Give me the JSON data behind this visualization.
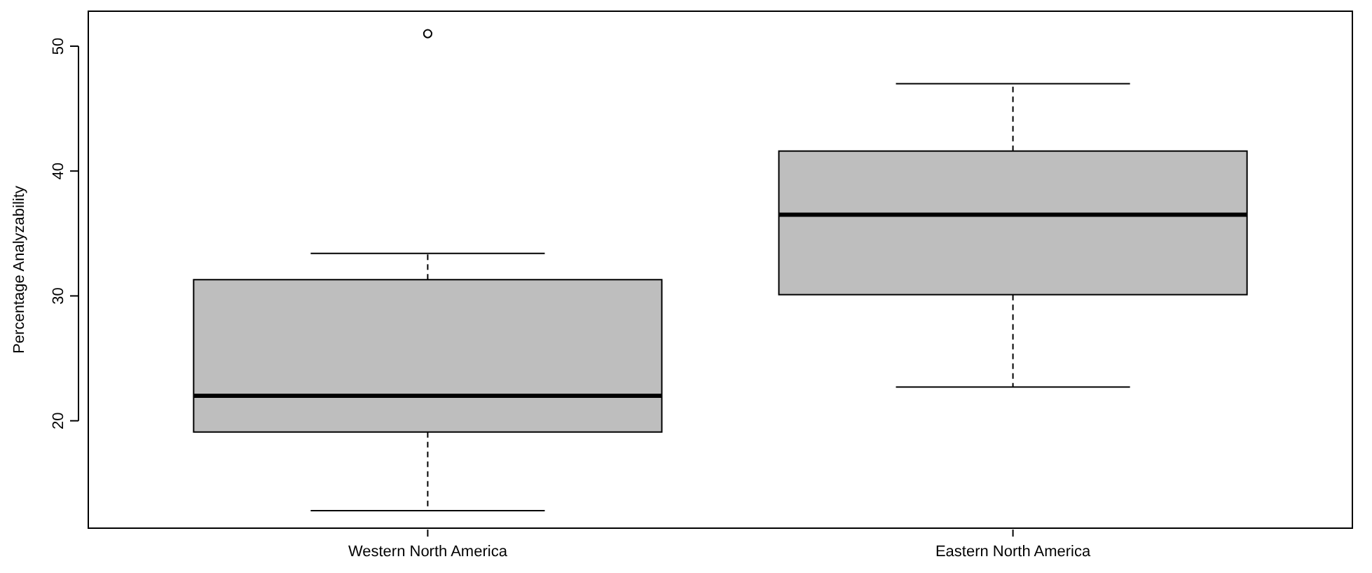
{
  "chart_data": {
    "type": "box",
    "ylabel": "Percentage Analyzability",
    "categories": [
      "Western North America",
      "Eastern North America"
    ],
    "boxes": [
      {
        "low": 12.8,
        "q1": 19.1,
        "median": 22.0,
        "q3": 31.3,
        "high": 33.4,
        "outliers": [
          51.0
        ]
      },
      {
        "low": 22.7,
        "q1": 30.1,
        "median": 36.5,
        "q3": 41.6,
        "high": 47.0
      }
    ],
    "color": "#bebebe",
    "ylim": [
      11.4,
      52.8
    ],
    "yticks": [
      20,
      30,
      40,
      50
    ],
    "grid": false
  }
}
